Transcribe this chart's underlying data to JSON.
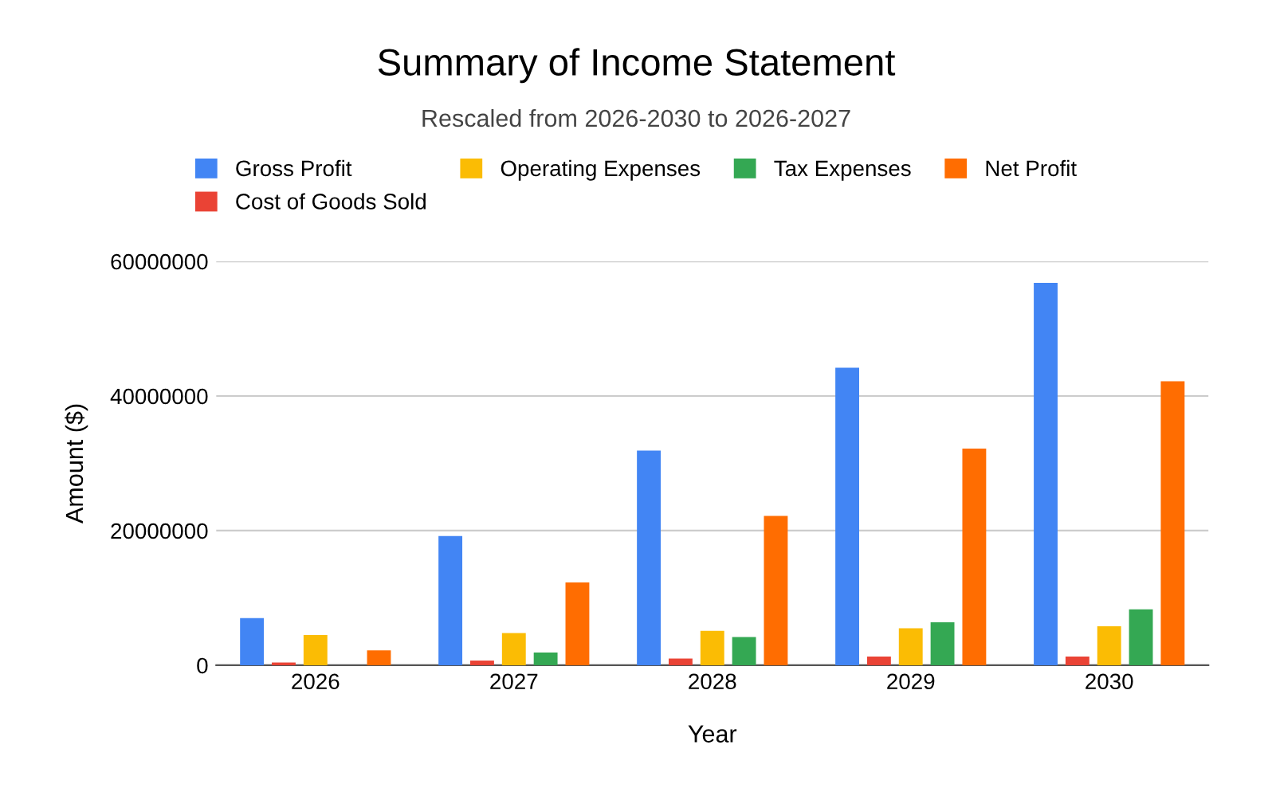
{
  "chart_data": {
    "type": "bar",
    "title": "Summary of Income Statement",
    "subtitle": "Rescaled from 2026-2030 to 2026-2027",
    "xlabel": "Year",
    "ylabel": "Amount ($)",
    "categories": [
      "2026",
      "2027",
      "2028",
      "2029",
      "2030"
    ],
    "series": [
      {
        "name": "Gross Profit",
        "color": "#4285f4",
        "values": [
          7000000,
          19200000,
          31900000,
          44200000,
          56800000
        ]
      },
      {
        "name": "Cost of Goods Sold",
        "color": "#ea4335",
        "values": [
          400000,
          700000,
          1000000,
          1300000,
          1300000
        ]
      },
      {
        "name": "Operating Expenses",
        "color": "#fbbc04",
        "values": [
          4500000,
          4800000,
          5100000,
          5500000,
          5800000
        ]
      },
      {
        "name": "Tax Expenses",
        "color": "#34a853",
        "values": [
          0,
          1900000,
          4200000,
          6400000,
          8300000
        ]
      },
      {
        "name": "Net Profit",
        "color": "#ff6d01",
        "values": [
          2200000,
          12300000,
          22200000,
          32200000,
          42200000
        ]
      }
    ],
    "ylim": [
      0,
      60000000
    ],
    "yticks": [
      0,
      20000000,
      40000000,
      60000000
    ],
    "grid": "y",
    "legend": "top"
  }
}
